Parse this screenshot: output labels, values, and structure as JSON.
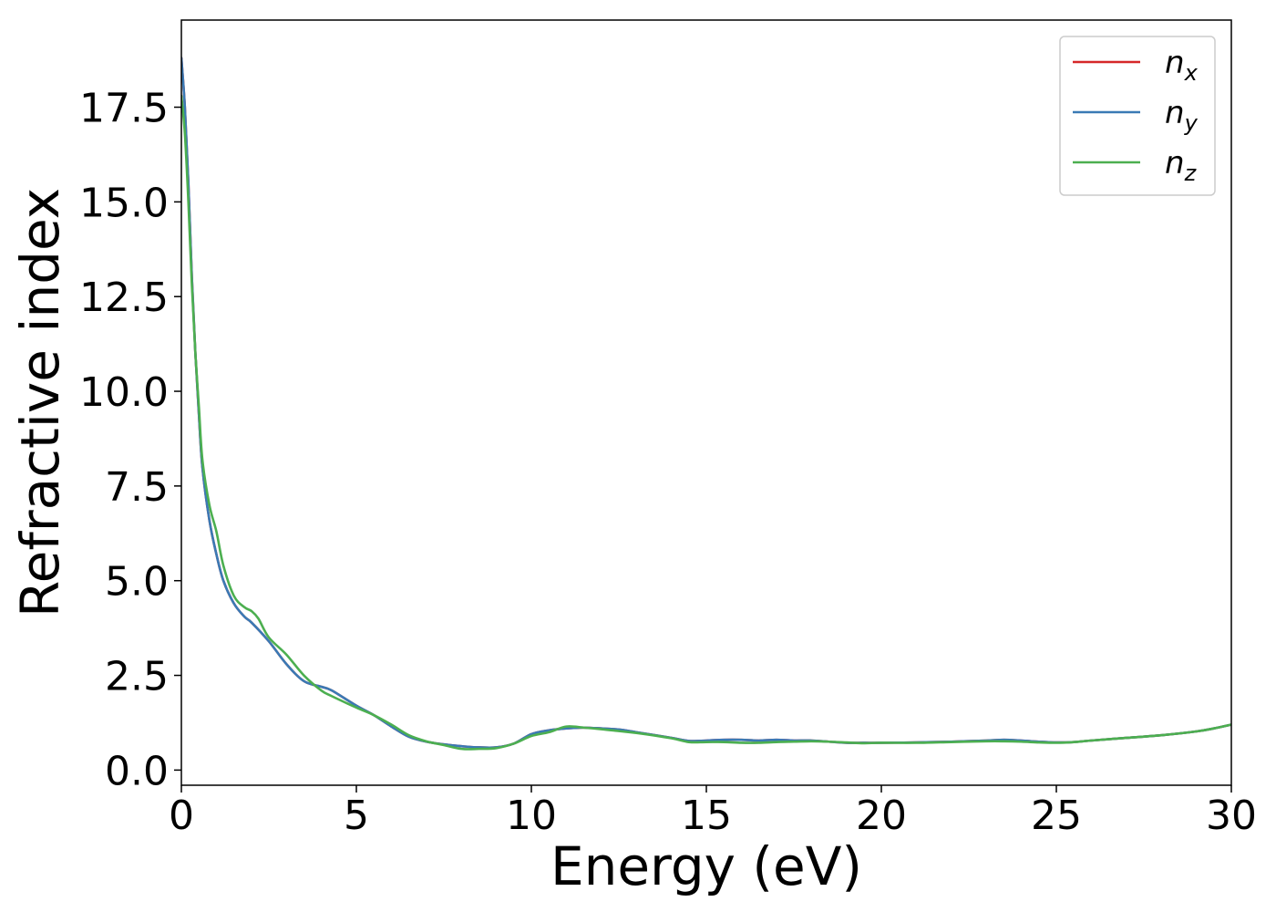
{
  "chart_data": {
    "type": "line",
    "title": "",
    "xlabel": "Energy (eV)",
    "ylabel": "Refractive index",
    "xlim": [
      0,
      30
    ],
    "ylim": [
      -0.4,
      19.8
    ],
    "xticks": [
      "0",
      "5",
      "10",
      "15",
      "20",
      "25",
      "30"
    ],
    "xtick_values": [
      0,
      5,
      10,
      15,
      20,
      25,
      30
    ],
    "yticks": [
      "0.0",
      "2.5",
      "5.0",
      "7.5",
      "10.0",
      "12.5",
      "15.0",
      "17.5"
    ],
    "ytick_values": [
      0,
      2.5,
      5,
      7.5,
      10,
      12.5,
      15,
      17.5
    ],
    "grid": false,
    "legend_position": "top-right",
    "series": [
      {
        "name": "n",
        "subscript": "x",
        "color": "#d62728",
        "x": [
          0,
          0.1,
          0.2,
          0.3,
          0.4,
          0.5,
          0.6,
          0.8,
          1.0,
          1.2,
          1.5,
          1.8,
          2.0,
          2.5,
          3.0,
          3.5,
          4.0,
          4.3,
          5.0,
          5.5,
          6.0,
          6.5,
          7.0,
          7.5,
          8.0,
          8.5,
          9.0,
          9.5,
          10.0,
          10.5,
          11.0,
          11.5,
          12.0,
          12.5,
          13.0,
          14.0,
          14.5,
          15.0,
          15.5,
          16.0,
          16.5,
          17.0,
          17.5,
          18.0,
          18.5,
          19.0,
          19.5,
          20.0,
          21.0,
          22.0,
          23.0,
          23.5,
          24.0,
          24.5,
          25.0,
          25.5,
          26.0,
          27.0,
          28.0,
          29.0,
          29.5,
          30.0
        ],
        "values": [
          18.8,
          17.5,
          15.5,
          13.0,
          11.0,
          9.4,
          8.0,
          6.6,
          5.7,
          5.0,
          4.4,
          4.05,
          3.9,
          3.4,
          2.8,
          2.35,
          2.2,
          2.1,
          1.7,
          1.45,
          1.15,
          0.88,
          0.75,
          0.68,
          0.63,
          0.6,
          0.6,
          0.7,
          0.95,
          1.05,
          1.1,
          1.12,
          1.1,
          1.07,
          1.0,
          0.85,
          0.77,
          0.78,
          0.8,
          0.8,
          0.78,
          0.8,
          0.78,
          0.78,
          0.75,
          0.72,
          0.72,
          0.72,
          0.73,
          0.75,
          0.78,
          0.8,
          0.78,
          0.75,
          0.73,
          0.74,
          0.78,
          0.85,
          0.92,
          1.02,
          1.1,
          1.2
        ]
      },
      {
        "name": "n",
        "subscript": "y",
        "color": "#3a7ab5",
        "x": [
          0,
          0.1,
          0.2,
          0.3,
          0.4,
          0.5,
          0.6,
          0.8,
          1.0,
          1.2,
          1.5,
          1.8,
          2.0,
          2.5,
          3.0,
          3.5,
          4.0,
          4.3,
          5.0,
          5.5,
          6.0,
          6.5,
          7.0,
          7.5,
          8.0,
          8.5,
          9.0,
          9.5,
          10.0,
          10.5,
          11.0,
          11.5,
          12.0,
          12.5,
          13.0,
          14.0,
          14.5,
          15.0,
          15.5,
          16.0,
          16.5,
          17.0,
          17.5,
          18.0,
          18.5,
          19.0,
          19.5,
          20.0,
          21.0,
          22.0,
          23.0,
          23.5,
          24.0,
          24.5,
          25.0,
          25.5,
          26.0,
          27.0,
          28.0,
          29.0,
          29.5,
          30.0
        ],
        "values": [
          18.8,
          17.5,
          15.5,
          13.0,
          11.0,
          9.4,
          8.0,
          6.6,
          5.7,
          5.0,
          4.4,
          4.05,
          3.9,
          3.4,
          2.8,
          2.35,
          2.2,
          2.1,
          1.7,
          1.45,
          1.15,
          0.88,
          0.75,
          0.68,
          0.63,
          0.6,
          0.6,
          0.7,
          0.95,
          1.05,
          1.1,
          1.12,
          1.1,
          1.07,
          1.0,
          0.85,
          0.77,
          0.78,
          0.8,
          0.8,
          0.78,
          0.8,
          0.78,
          0.78,
          0.75,
          0.72,
          0.72,
          0.72,
          0.73,
          0.75,
          0.78,
          0.8,
          0.78,
          0.75,
          0.73,
          0.74,
          0.78,
          0.85,
          0.92,
          1.02,
          1.1,
          1.2
        ]
      },
      {
        "name": "n",
        "subscript": "z",
        "color": "#4caf50",
        "x": [
          0,
          0.1,
          0.2,
          0.3,
          0.4,
          0.5,
          0.6,
          0.8,
          1.0,
          1.2,
          1.5,
          1.8,
          2.0,
          2.2,
          2.5,
          3.0,
          3.5,
          4.0,
          4.3,
          5.0,
          5.5,
          6.0,
          6.5,
          7.0,
          7.5,
          8.0,
          8.5,
          9.0,
          9.5,
          10.0,
          10.5,
          11.0,
          11.5,
          12.0,
          12.5,
          13.0,
          14.0,
          14.5,
          15.0,
          15.5,
          16.0,
          16.5,
          17.0,
          17.5,
          18.0,
          18.5,
          19.0,
          19.5,
          20.0,
          21.0,
          22.0,
          23.0,
          23.5,
          24.0,
          24.5,
          25.0,
          25.5,
          26.0,
          27.0,
          28.0,
          29.0,
          29.5,
          30.0
        ],
        "values": [
          17.8,
          16.8,
          15.0,
          12.8,
          11.0,
          9.6,
          8.2,
          7.0,
          6.3,
          5.4,
          4.6,
          4.3,
          4.2,
          4.0,
          3.5,
          3.05,
          2.5,
          2.1,
          1.95,
          1.65,
          1.45,
          1.2,
          0.92,
          0.76,
          0.66,
          0.56,
          0.56,
          0.58,
          0.7,
          0.9,
          1.0,
          1.15,
          1.12,
          1.08,
          1.03,
          0.98,
          0.84,
          0.74,
          0.74,
          0.74,
          0.72,
          0.72,
          0.74,
          0.75,
          0.76,
          0.75,
          0.73,
          0.71,
          0.72,
          0.72,
          0.74,
          0.76,
          0.76,
          0.75,
          0.73,
          0.72,
          0.74,
          0.78,
          0.85,
          0.92,
          1.02,
          1.1,
          1.2
        ]
      }
    ]
  }
}
